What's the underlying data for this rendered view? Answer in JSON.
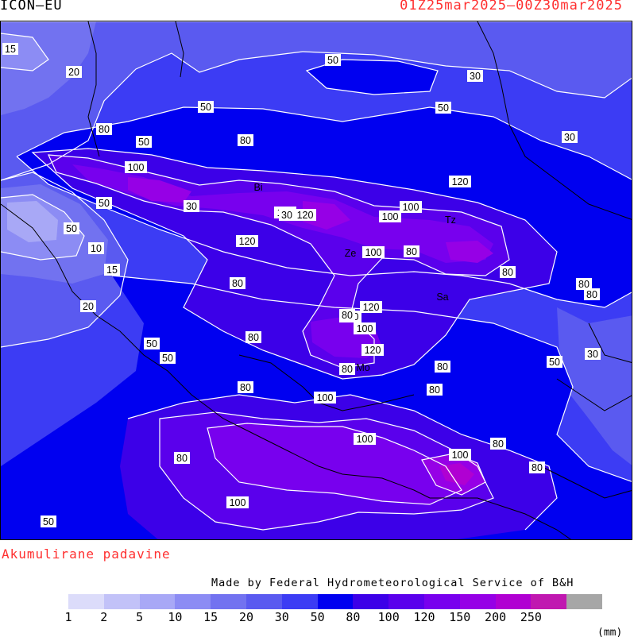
{
  "header": {
    "model": "ICON—EU",
    "period": "01Z25mar2025—00Z30mar2025"
  },
  "product_label": "Akumulirane padavine",
  "credit": "Made by Federal Hydrometeorological Service of B&H",
  "legend": {
    "unit": "(mm)",
    "ticks": [
      "1",
      "2",
      "5",
      "10",
      "15",
      "20",
      "30",
      "50",
      "80",
      "100",
      "120",
      "150",
      "200",
      "250"
    ],
    "colors": [
      "#dcdcfa",
      "#c2c2f8",
      "#a8a8f6",
      "#8c8cf4",
      "#7272f0",
      "#5a5af0",
      "#3c3cf4",
      "#0000f0",
      "#3c00e8",
      "#5a00ec",
      "#7800ee",
      "#9600e6",
      "#b000d2",
      "#c018b0",
      "#a6a6a6"
    ]
  },
  "map_labels": {
    "contour_values": [
      "15",
      "20",
      "50",
      "30",
      "30",
      "50",
      "50",
      "50",
      "80",
      "100",
      "80",
      "30",
      "50",
      "120",
      "50",
      "10",
      "15",
      "20",
      "30",
      "120",
      "100",
      "100",
      "120",
      "80",
      "120",
      "100",
      "80",
      "80",
      "80",
      "100",
      "120",
      "80",
      "100",
      "120",
      "80",
      "50",
      "30",
      "80",
      "80",
      "50",
      "50",
      "80",
      "80",
      "100",
      "100",
      "80",
      "80",
      "80",
      "100",
      "80",
      "100",
      "50"
    ],
    "cities": [
      "Bi",
      "Ze",
      "Tz",
      "Sa",
      "Mo"
    ]
  }
}
